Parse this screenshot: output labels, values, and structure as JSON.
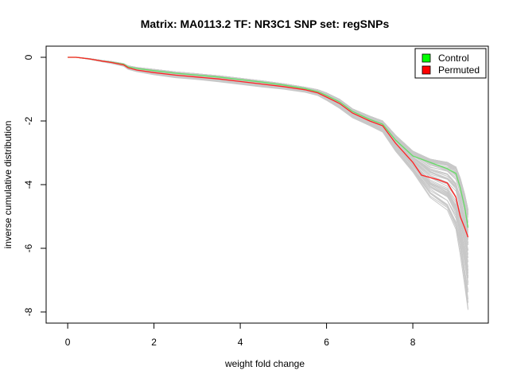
{
  "chart_data": {
    "type": "line",
    "title": "Matrix: MA0113.2 TF: NR3C1 SNP set: regSNPs",
    "xlabel": "weight fold change",
    "ylabel": "inverse cumulative distribution",
    "xlim": [
      -0.5,
      9.75
    ],
    "ylim": [
      -8.35,
      0.35
    ],
    "x_ticks": [
      0,
      2,
      4,
      6,
      8
    ],
    "y_ticks": [
      0,
      -2,
      -4,
      -6,
      -8
    ],
    "grid": false,
    "legend_position": "top-right",
    "legend": [
      {
        "label": "Control",
        "color": "#00ff00"
      },
      {
        "label": "Permuted",
        "color": "#ff0000"
      }
    ],
    "series": [
      {
        "name": "Control",
        "color": "#66dd66",
        "x": [
          0,
          0.2,
          0.5,
          0.8,
          1.0,
          1.3,
          1.4,
          1.6,
          2.0,
          2.5,
          3.0,
          3.5,
          4.0,
          4.5,
          5.0,
          5.5,
          5.8,
          6.0,
          6.3,
          6.6,
          7.0,
          7.3,
          7.6,
          8.0,
          8.4,
          8.8,
          9.0,
          9.1,
          9.2,
          9.28
        ],
        "y": [
          0,
          0,
          -0.05,
          -0.12,
          -0.15,
          -0.22,
          -0.3,
          -0.35,
          -0.42,
          -0.5,
          -0.56,
          -0.62,
          -0.7,
          -0.78,
          -0.87,
          -0.98,
          -1.08,
          -1.2,
          -1.4,
          -1.7,
          -1.95,
          -2.1,
          -2.6,
          -3.1,
          -3.3,
          -3.5,
          -3.65,
          -4.1,
          -4.7,
          -5.35
        ]
      },
      {
        "name": "Permuted",
        "color": "#ff2222",
        "x": [
          0,
          0.2,
          0.5,
          0.8,
          1.0,
          1.3,
          1.4,
          1.6,
          2.0,
          2.5,
          3.0,
          3.5,
          4.0,
          4.5,
          5.0,
          5.5,
          5.8,
          6.0,
          6.3,
          6.6,
          7.0,
          7.3,
          7.6,
          8.0,
          8.2,
          8.6,
          8.8,
          9.0,
          9.1,
          9.2,
          9.28
        ],
        "y": [
          0,
          0,
          -0.05,
          -0.12,
          -0.16,
          -0.24,
          -0.33,
          -0.4,
          -0.48,
          -0.56,
          -0.62,
          -0.68,
          -0.76,
          -0.84,
          -0.92,
          -1.02,
          -1.12,
          -1.25,
          -1.45,
          -1.75,
          -2.0,
          -2.15,
          -2.7,
          -3.3,
          -3.7,
          -3.85,
          -3.95,
          -4.4,
          -5.0,
          -5.35,
          -5.65
        ]
      }
    ],
    "background_series": {
      "name": "",
      "color": "#c8c8c8",
      "count": 60,
      "x": [
        0,
        0.2,
        0.5,
        0.8,
        1.0,
        1.3,
        1.4,
        1.6,
        2.0,
        2.5,
        3.0,
        3.5,
        4.0,
        4.5,
        5.0,
        5.5,
        5.8,
        6.0,
        6.3,
        6.6,
        7.0,
        7.3,
        7.6,
        8.0,
        8.4,
        8.8,
        9.0,
        9.1,
        9.2,
        9.28
      ],
      "y_upper": [
        0,
        0,
        -0.04,
        -0.1,
        -0.13,
        -0.2,
        -0.27,
        -0.32,
        -0.38,
        -0.46,
        -0.52,
        -0.58,
        -0.66,
        -0.74,
        -0.83,
        -0.94,
        -1.02,
        -1.12,
        -1.32,
        -1.62,
        -1.85,
        -2.0,
        -2.45,
        -2.95,
        -3.2,
        -3.3,
        -3.45,
        -3.8,
        -4.3,
        -4.8
      ],
      "y_lower": [
        0,
        0,
        -0.06,
        -0.14,
        -0.19,
        -0.28,
        -0.38,
        -0.45,
        -0.55,
        -0.64,
        -0.7,
        -0.77,
        -0.85,
        -0.93,
        -1.0,
        -1.1,
        -1.2,
        -1.35,
        -1.6,
        -1.9,
        -2.15,
        -2.35,
        -2.95,
        -3.6,
        -4.4,
        -4.8,
        -5.4,
        -6.2,
        -7.2,
        -8.0
      ]
    }
  }
}
